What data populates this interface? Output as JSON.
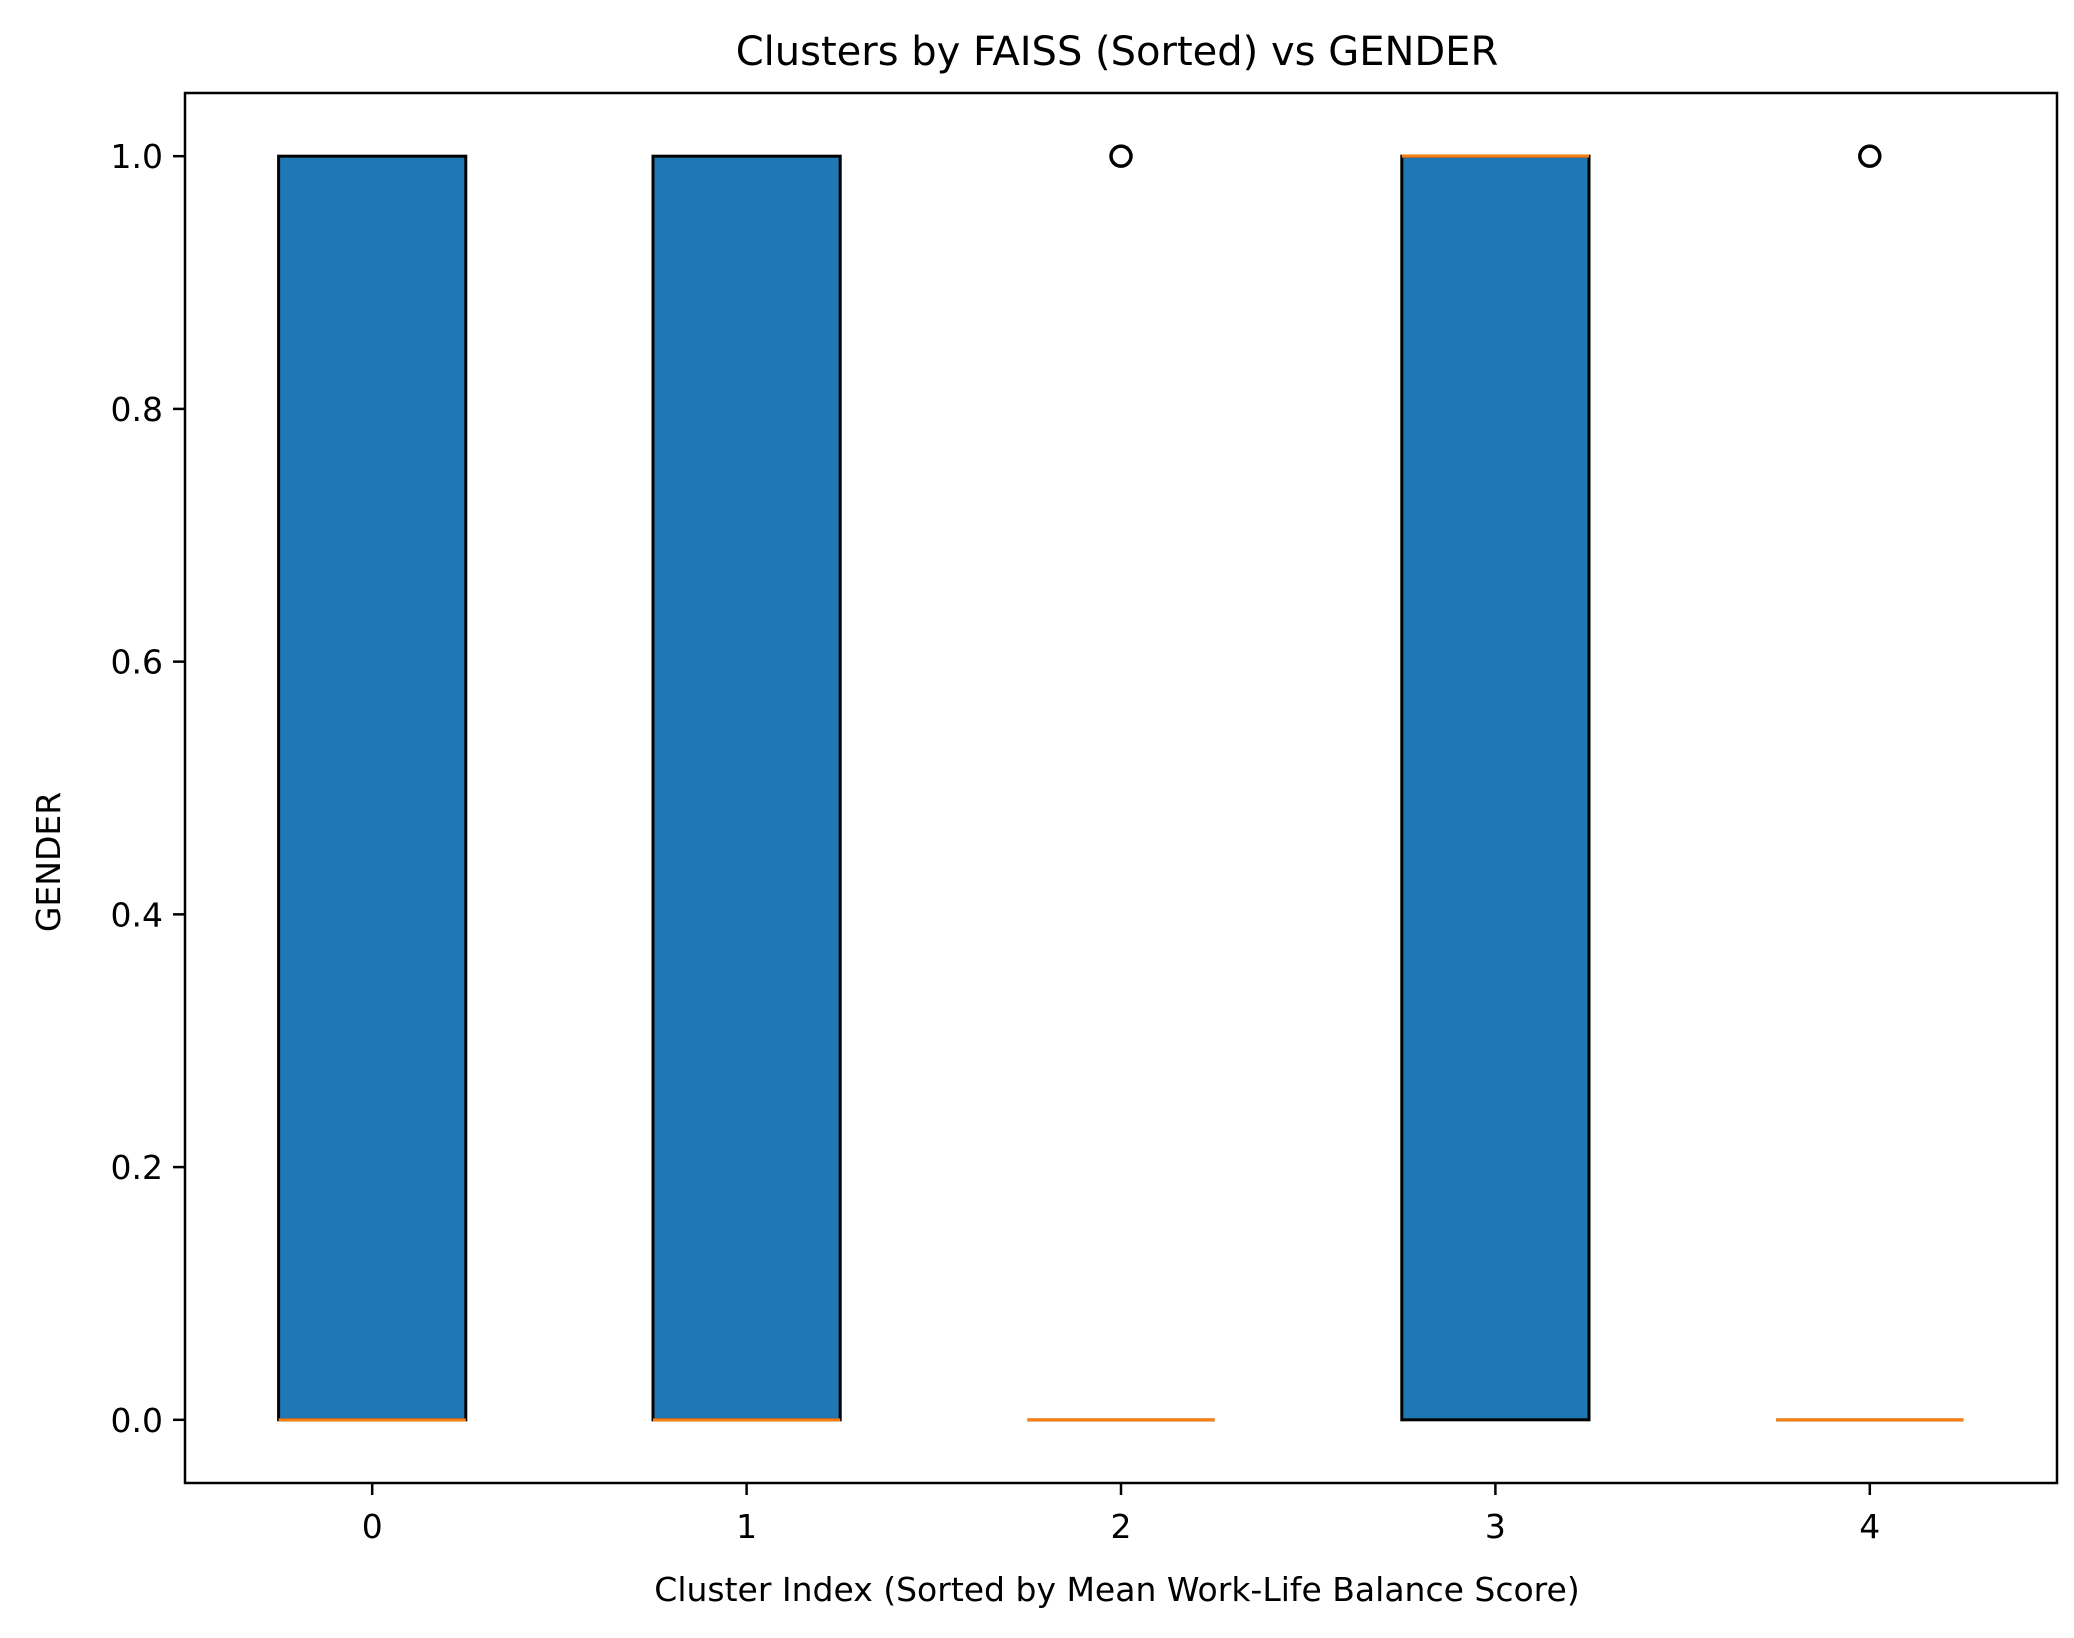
{
  "chart_data": {
    "type": "box",
    "title": "Clusters by FAISS (Sorted) vs GENDER",
    "xlabel": "Cluster Index (Sorted by Mean Work-Life Balance Score)",
    "ylabel": "GENDER",
    "xlim": [
      -0.5,
      4.5
    ],
    "ylim": [
      -0.05,
      1.05
    ],
    "yticks": [
      0.0,
      0.2,
      0.4,
      0.6,
      0.8,
      1.0
    ],
    "ytick_labels": [
      "0.0",
      "0.2",
      "0.4",
      "0.6",
      "0.8",
      "1.0"
    ],
    "categories": [
      "0",
      "1",
      "2",
      "3",
      "4"
    ],
    "boxes": [
      {
        "category": "0",
        "q1": 0,
        "median": 0,
        "q3": 1,
        "whisker_low": 0,
        "whisker_high": 1,
        "outliers": []
      },
      {
        "category": "1",
        "q1": 0,
        "median": 0,
        "q3": 1,
        "whisker_low": 0,
        "whisker_high": 1,
        "outliers": []
      },
      {
        "category": "2",
        "q1": 0,
        "median": 0,
        "q3": 0,
        "whisker_low": 0,
        "whisker_high": 0,
        "outliers": [
          1
        ]
      },
      {
        "category": "3",
        "q1": 0,
        "median": 1,
        "q3": 1,
        "whisker_low": 0,
        "whisker_high": 1,
        "outliers": []
      },
      {
        "category": "4",
        "q1": 0,
        "median": 0,
        "q3": 0,
        "whisker_low": 0,
        "whisker_high": 0,
        "outliers": [
          1
        ]
      }
    ],
    "colors": {
      "box_fill": "#1f77b4",
      "box_edge": "#000000",
      "median": "#ff7f0e",
      "outlier_edge": "#000000"
    },
    "grid": false,
    "legend": false
  }
}
